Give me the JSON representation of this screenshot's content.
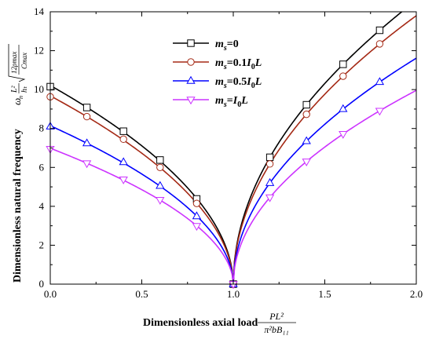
{
  "chart_data": {
    "type": "line",
    "xlabel": "Dimensionless axial load",
    "xlabel_formula": {
      "numerator": "PL²",
      "denominator": "π²bB₁₁"
    },
    "ylabel": "Dimensionless natural frequency",
    "ylabel_formula": {
      "omega": "ω",
      "n": "n",
      "L": "L²",
      "h": "hₜ",
      "radicand_num": "12ρmax",
      "radicand_den": "Cmax"
    },
    "xlim": [
      0,
      2.0
    ],
    "ylim": [
      0,
      14
    ],
    "xticks": [
      "0.0",
      "0.5",
      "1.0",
      "1.5",
      "2.0"
    ],
    "yticks": [
      "0",
      "2",
      "4",
      "6",
      "8",
      "10",
      "12",
      "14"
    ],
    "grid": false,
    "legend_position": "top-center",
    "series": [
      {
        "name": "ms=0",
        "legend": {
          "var": "m",
          "sub": "s",
          "rest": "=0"
        },
        "color": "#000000",
        "marker": "square",
        "x": [
          0.0,
          0.2,
          0.4,
          0.6,
          0.8,
          1.0,
          1.2,
          1.4,
          1.6,
          1.8
        ],
        "y": [
          10.15,
          9.08,
          7.86,
          6.38,
          4.38,
          0.0,
          6.52,
          9.22,
          11.3,
          13.05
        ]
      },
      {
        "name": "ms=0.1I0L",
        "legend": {
          "var": "m",
          "sub": "s",
          "rest": "=0.1",
          "var2": "I",
          "sub2": "0",
          "rest2": "L"
        },
        "color": "#a52a16",
        "marker": "circle",
        "x": [
          0.0,
          0.2,
          0.4,
          0.6,
          0.8,
          1.0,
          1.2,
          1.4,
          1.6,
          1.8
        ],
        "y": [
          9.63,
          8.61,
          7.45,
          6.0,
          4.15,
          0.0,
          6.18,
          8.73,
          10.69,
          12.35
        ]
      },
      {
        "name": "ms=0.5I0L",
        "legend": {
          "var": "m",
          "sub": "s",
          "rest": "=0.5",
          "var2": "I",
          "sub2": "0",
          "rest2": "L"
        },
        "color": "#0000ff",
        "marker": "triangle-up",
        "x": [
          0.0,
          0.2,
          0.4,
          0.6,
          0.8,
          1.0,
          1.2,
          1.4,
          1.6,
          1.8
        ],
        "y": [
          8.1,
          7.24,
          6.27,
          5.05,
          3.49,
          0.0,
          5.2,
          7.35,
          9.0,
          10.39
        ]
      },
      {
        "name": "ms=I0L",
        "legend": {
          "var": "m",
          "sub": "s",
          "rest": "=",
          "var2": "I",
          "sub2": "0",
          "rest2": "L"
        },
        "color": "#cc33ff",
        "marker": "triangle-down",
        "x": [
          0.0,
          0.2,
          0.4,
          0.6,
          0.8,
          1.0,
          1.2,
          1.4,
          1.6,
          1.8
        ],
        "y": [
          6.95,
          6.21,
          5.38,
          4.33,
          2.99,
          0.0,
          4.46,
          6.3,
          7.72,
          8.91
        ]
      }
    ]
  }
}
